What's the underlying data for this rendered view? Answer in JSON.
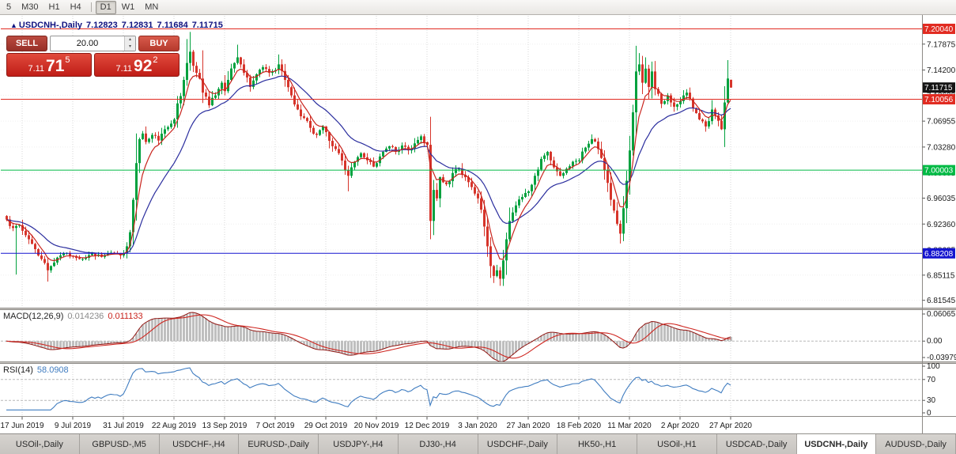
{
  "toolbar": {
    "timeframes": [
      "5",
      "M30",
      "H1",
      "H4",
      "D1",
      "W1",
      "MN"
    ],
    "active": "D1",
    "group_break_after_index": 3
  },
  "chart_header": {
    "direction_arrow": "▲",
    "symbol": "USDCNH-,Daily",
    "open": "7.12823",
    "high": "7.12831",
    "low": "7.11684",
    "close": "7.11715"
  },
  "trade_panel": {
    "sell_label": "SELL",
    "buy_label": "BUY",
    "volume": "20.00",
    "sell_price": {
      "prefix": "7.11",
      "big": "71",
      "sup": "5"
    },
    "buy_price": {
      "prefix": "7.11",
      "big": "92",
      "sup": "2"
    }
  },
  "macd_panel": {
    "label": "MACD(12,26,9)",
    "main_value": "0.014236",
    "signal_value": "0.011133"
  },
  "rsi_panel": {
    "label": "RSI(14)",
    "value": "58.0908"
  },
  "tabs": {
    "items": [
      "USOil-,Daily",
      "GBPUSD-,M5",
      "USDCHF-,H4",
      "EURUSD-,Daily",
      "USDJPY-,H4",
      "DJ30-,H4",
      "USDCHF-,Daily",
      "HK50-,H1",
      "USOil-,H1",
      "USDCAD-,Daily",
      "USDCNH-,Daily",
      "AUDUSD-,Daily"
    ],
    "active_index": 10
  },
  "colors": {
    "up": "#00a13e",
    "down": "#d6352b",
    "ma_fast": "#c9241d",
    "ma_slow": "#2b2e9e",
    "macd_hist": "#bfbfbf",
    "macd_signal": "#cf2620",
    "rsi": "#3f7cc0",
    "grid": "#d7d7d7",
    "grid_h": "#efefef",
    "axis_text": "#1a1a1a",
    "tag_text": "#ffffff"
  },
  "chart_data": {
    "type": "candlestick",
    "symbol": "USDCNH-",
    "timeframe": "Daily",
    "bar_count": 230,
    "bars_per_xlabel": 16,
    "first_xlabel_bar": 5,
    "x_labels": [
      "17 Jun 2019",
      "9 Jul 2019",
      "31 Jul 2019",
      "22 Aug 2019",
      "13 Sep 2019",
      "7 Oct 2019",
      "29 Oct 2019",
      "20 Nov 2019",
      "12 Dec 2019",
      "3 Jan 2020",
      "27 Jan 2020",
      "18 Feb 2020",
      "11 Mar 2020",
      "2 Apr 2020",
      "27 Apr 2020"
    ],
    "y_axis": {
      "top": 7.22,
      "bottom": 6.805,
      "tick_labels": [
        "7.17875",
        "7.14200",
        "7.10630",
        "7.06955",
        "7.03280",
        "6.99605",
        "6.96035",
        "6.92360",
        "6.88685",
        "6.85115",
        "6.81545"
      ]
    },
    "price_tags": [
      {
        "label": "7.20040",
        "price": 7.2004,
        "bg": "#e12b21"
      },
      {
        "label": "7.11715",
        "price": 7.11715,
        "bg": "#151515"
      },
      {
        "label": "7.10056",
        "price": 7.10056,
        "bg": "#e12b21"
      },
      {
        "label": "7.00003",
        "price": 7.00003,
        "bg": "#00ba44"
      },
      {
        "label": "6.88208",
        "price": 6.88208,
        "bg": "#1414cf"
      }
    ],
    "level_lines": [
      {
        "price": 7.2004,
        "color": "#e12b21"
      },
      {
        "price": 7.10056,
        "color": "#e12b21"
      },
      {
        "price": 7.00003,
        "color": "#00ba44"
      },
      {
        "price": 6.88208,
        "color": "#1414cf"
      }
    ],
    "current_bid": 7.11715,
    "current_ask": 7.11922,
    "last_bar": {
      "open": 7.12823,
      "high": 7.12831,
      "low": 7.11684,
      "close": 7.11715
    },
    "close_anchors": [
      [
        0,
        6.93
      ],
      [
        2,
        6.918
      ],
      [
        4,
        6.922
      ],
      [
        5,
        6.914
      ],
      [
        7,
        6.902
      ],
      [
        9,
        6.888
      ],
      [
        11,
        6.874
      ],
      [
        13,
        6.858
      ],
      [
        14,
        6.864
      ],
      [
        16,
        6.876
      ],
      [
        18,
        6.882
      ],
      [
        21,
        6.878
      ],
      [
        24,
        6.874
      ],
      [
        27,
        6.882
      ],
      [
        30,
        6.877
      ],
      [
        33,
        6.883
      ],
      [
        36,
        6.879
      ],
      [
        38,
        6.892
      ],
      [
        39,
        6.912
      ],
      [
        40,
        6.958
      ],
      [
        41,
        7.01
      ],
      [
        42,
        7.044
      ],
      [
        43,
        7.052
      ],
      [
        44,
        7.04
      ],
      [
        46,
        7.05
      ],
      [
        48,
        7.042
      ],
      [
        50,
        7.058
      ],
      [
        52,
        7.066
      ],
      [
        53,
        7.072
      ],
      [
        55,
        7.105
      ],
      [
        56,
        7.128
      ],
      [
        57,
        7.152
      ],
      [
        58,
        7.168
      ],
      [
        59,
        7.148
      ],
      [
        60,
        7.138
      ],
      [
        62,
        7.11
      ],
      [
        64,
        7.092
      ],
      [
        66,
        7.106
      ],
      [
        68,
        7.124
      ],
      [
        69,
        7.112
      ],
      [
        70,
        7.128
      ],
      [
        72,
        7.152
      ],
      [
        73,
        7.16
      ],
      [
        74,
        7.15
      ],
      [
        75,
        7.138
      ],
      [
        77,
        7.118
      ],
      [
        79,
        7.136
      ],
      [
        81,
        7.146
      ],
      [
        83,
        7.138
      ],
      [
        85,
        7.142
      ],
      [
        86,
        7.15
      ],
      [
        88,
        7.128
      ],
      [
        90,
        7.106
      ],
      [
        92,
        7.086
      ],
      [
        94,
        7.074
      ],
      [
        96,
        7.06
      ],
      [
        98,
        7.05
      ],
      [
        100,
        7.062
      ],
      [
        101,
        7.054
      ],
      [
        103,
        7.034
      ],
      [
        105,
        7.024
      ],
      [
        107,
        7.0
      ],
      [
        108,
        6.992
      ],
      [
        109,
        7.004
      ],
      [
        110,
        7.012
      ],
      [
        112,
        7.024
      ],
      [
        114,
        7.014
      ],
      [
        116,
        7.005
      ],
      [
        117,
        7.01
      ],
      [
        119,
        7.026
      ],
      [
        121,
        7.034
      ],
      [
        123,
        7.026
      ],
      [
        125,
        7.035
      ],
      [
        127,
        7.028
      ],
      [
        129,
        7.038
      ],
      [
        131,
        7.048
      ],
      [
        133,
        7.036
      ],
      [
        134,
        6.928
      ],
      [
        135,
        6.972
      ],
      [
        136,
        6.96
      ],
      [
        137,
        6.99
      ],
      [
        139,
        6.98
      ],
      [
        141,
        6.996
      ],
      [
        143,
        7.002
      ],
      [
        145,
        6.99
      ],
      [
        147,
        6.976
      ],
      [
        149,
        6.96
      ],
      [
        150,
        6.944
      ],
      [
        151,
        6.92
      ],
      [
        152,
        6.892
      ],
      [
        153,
        6.864
      ],
      [
        154,
        6.85
      ],
      [
        155,
        6.858
      ],
      [
        156,
        6.846
      ],
      [
        157,
        6.872
      ],
      [
        158,
        6.902
      ],
      [
        159,
        6.928
      ],
      [
        160,
        6.94
      ],
      [
        161,
        6.95
      ],
      [
        163,
        6.962
      ],
      [
        165,
        6.97
      ],
      [
        167,
        6.992
      ],
      [
        169,
        7.016
      ],
      [
        171,
        7.026
      ],
      [
        173,
        7.004
      ],
      [
        175,
        6.992
      ],
      [
        177,
        7.002
      ],
      [
        179,
        7.012
      ],
      [
        181,
        7.014
      ],
      [
        183,
        7.032
      ],
      [
        185,
        7.044
      ],
      [
        187,
        7.03
      ],
      [
        189,
        7.0
      ],
      [
        191,
        6.958
      ],
      [
        193,
        6.924
      ],
      [
        194,
        6.91
      ],
      [
        195,
        6.946
      ],
      [
        196,
        6.985
      ],
      [
        197,
        7.028
      ],
      [
        198,
        7.082
      ],
      [
        199,
        7.14
      ],
      [
        200,
        7.15
      ],
      [
        201,
        7.124
      ],
      [
        202,
        7.144
      ],
      [
        203,
        7.118
      ],
      [
        204,
        7.14
      ],
      [
        205,
        7.115
      ],
      [
        207,
        7.094
      ],
      [
        209,
        7.106
      ],
      [
        211,
        7.09
      ],
      [
        213,
        7.098
      ],
      [
        215,
        7.11
      ],
      [
        217,
        7.088
      ],
      [
        219,
        7.072
      ],
      [
        221,
        7.062
      ],
      [
        223,
        7.086
      ],
      [
        225,
        7.07
      ],
      [
        226,
        7.058
      ],
      [
        227,
        7.096
      ],
      [
        228,
        7.13
      ],
      [
        229,
        7.11715
      ]
    ],
    "wick_spikes": [
      {
        "i": 3,
        "low": 6.852
      },
      {
        "i": 13,
        "low": 6.842
      },
      {
        "i": 41,
        "high": 7.052
      },
      {
        "i": 57,
        "high": 7.186
      },
      {
        "i": 58,
        "high": 7.196
      },
      {
        "i": 62,
        "high": 7.17
      },
      {
        "i": 73,
        "high": 7.178
      },
      {
        "i": 86,
        "high": 7.164
      },
      {
        "i": 108,
        "low": 6.97
      },
      {
        "i": 134,
        "low": 6.902
      },
      {
        "i": 154,
        "low": 6.84
      },
      {
        "i": 156,
        "low": 6.836
      },
      {
        "i": 194,
        "low": 6.896
      },
      {
        "i": 200,
        "high": 7.166
      },
      {
        "i": 202,
        "high": 7.16
      },
      {
        "i": 228,
        "high": 7.156
      }
    ],
    "overlays": [
      {
        "name": "ma-fast",
        "type": "ema",
        "period": 6
      },
      {
        "name": "ma-slow",
        "type": "ema",
        "period": 20
      }
    ],
    "macd": {
      "fast": 12,
      "slow": 26,
      "signal": 9,
      "last_main": 0.014236,
      "last_signal": 0.011133,
      "axis_max": 0.06065,
      "axis_min": -0.03979,
      "axis_labels": [
        "0.06065",
        "0.00",
        "-0.03979"
      ]
    },
    "rsi": {
      "period": 14,
      "last": 58.0908,
      "levels": [
        70,
        30
      ],
      "axis_labels": [
        "100",
        "70",
        "30",
        "0"
      ]
    },
    "noise_seed": 7
  }
}
